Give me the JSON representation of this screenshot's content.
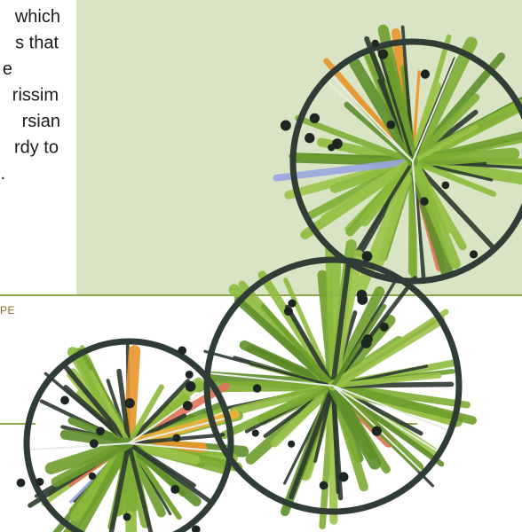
{
  "paragraph_lines": [
    "which",
    "s that",
    "e",
    "rissim",
    "rsian",
    "rdy to",
    "."
  ],
  "section_label": "PE"
}
